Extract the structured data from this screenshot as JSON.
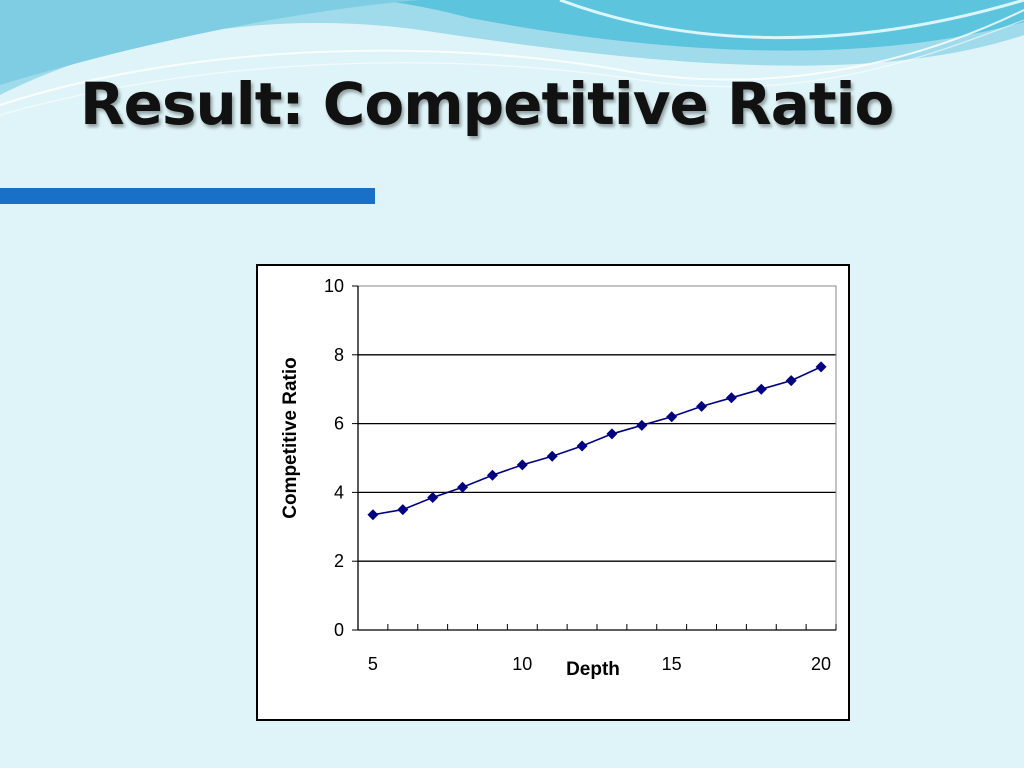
{
  "slide": {
    "title": "Result: Competitive Ratio"
  },
  "theme": {
    "accent": "#1871c6",
    "series_color": "#000080",
    "background": "#dff4f8"
  },
  "chart_data": {
    "type": "line",
    "title": "",
    "xlabel": "Depth",
    "ylabel": "Competitive Ratio",
    "xlim": [
      5,
      20
    ],
    "ylim": [
      0,
      10
    ],
    "yticks": [
      0,
      2,
      4,
      6,
      8,
      10
    ],
    "xtick_labels": [
      "5",
      "10",
      "15",
      "20"
    ],
    "grid": "horizontal",
    "legend": "none",
    "marker": "diamond",
    "series": [
      {
        "x": [
          5,
          6,
          7,
          8,
          9,
          10,
          11,
          12,
          13,
          14,
          15,
          16,
          17,
          18,
          19,
          20
        ],
        "values": [
          3.35,
          3.5,
          3.85,
          4.15,
          4.5,
          4.8,
          5.05,
          5.35,
          5.7,
          5.95,
          6.2,
          6.5,
          6.75,
          7.0,
          7.25,
          7.65
        ]
      }
    ]
  }
}
